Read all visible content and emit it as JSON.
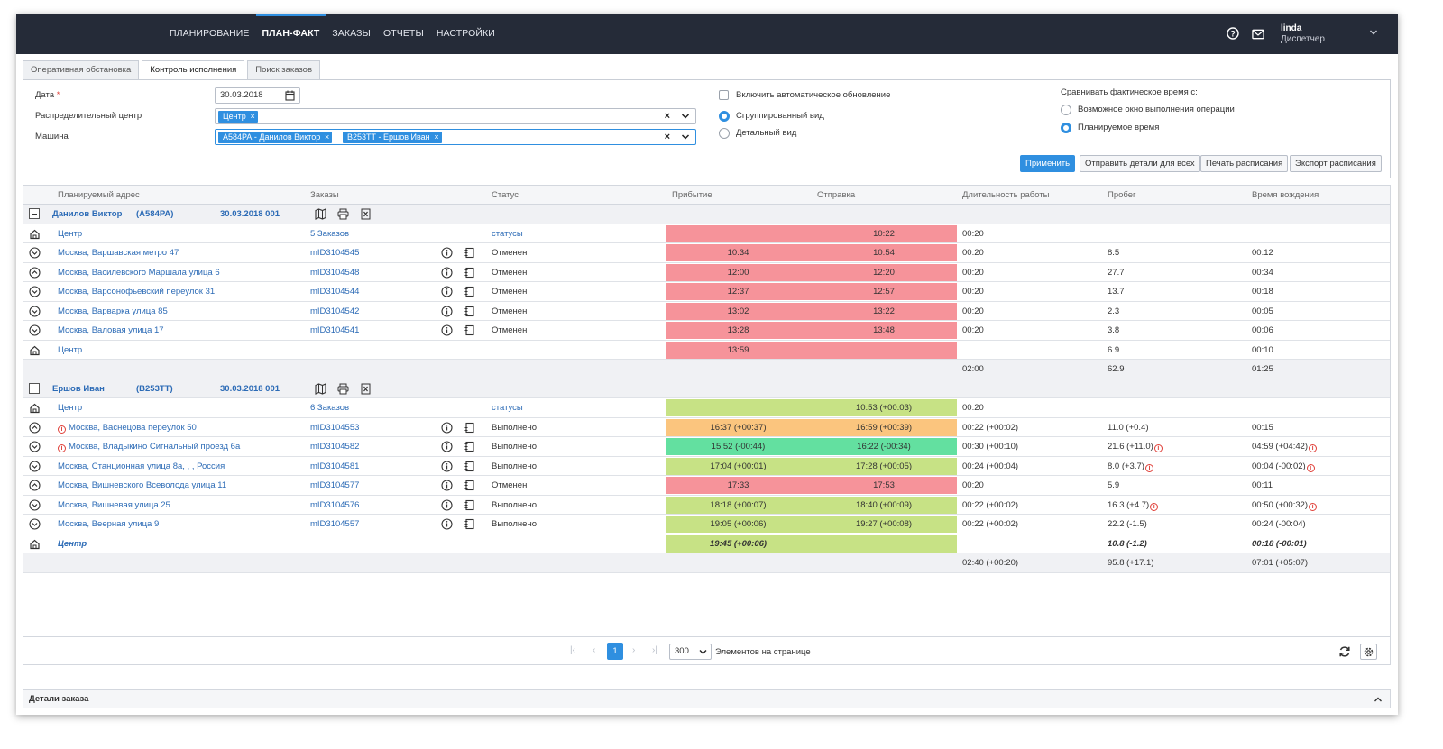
{
  "nav": {
    "menu": [
      "ПЛАНИРОВАНИЕ",
      "ПЛАН-ФАКТ",
      "ЗАКАЗЫ",
      "ОТЧЕТЫ",
      "НАСТРОЙКИ"
    ],
    "active": "ПЛАН-ФАКТ",
    "user_name": "linda",
    "user_role": "Диспетчер"
  },
  "tabs": [
    "Оперативная обстановка",
    "Контроль исполнения",
    "Поиск заказов"
  ],
  "filters": {
    "date_label": "Дата",
    "date_value": "30.03.2018",
    "dc_label": "Распределительный центр",
    "dc_chips": [
      "Центр"
    ],
    "vehicle_label": "Машина",
    "vehicle_chips": [
      "А584РА - Данилов Виктор",
      "В253ТТ - Ершов Иван"
    ],
    "auto_update": "Включить автоматическое обновление",
    "view_grouped": "Сгруппированный вид",
    "view_detailed": "Детальный вид",
    "compare_title": "Сравнивать фактическое время с:",
    "compare_window": "Возможное окно выполнения операции",
    "compare_planned": "Планируемое время",
    "buttons": {
      "apply": "Применить",
      "send": "Отправить детали для всех",
      "print": "Печать расписания",
      "export": "Экспорт расписания"
    }
  },
  "columns": [
    "Планируемый адрес",
    "Заказы",
    "Статус",
    "Прибытие",
    "Отправка",
    "Длительность работы",
    "Пробег",
    "Время вождения"
  ],
  "colors": {
    "red": "#f6939a",
    "green": "#c7e285",
    "orange": "#fbc57e",
    "bright": "#63e0a0",
    "accent": "#2f8fe0"
  },
  "groups": [
    {
      "driver": "Данилов Виктор",
      "plate": "(А584РА)",
      "route": "30.03.2018 001",
      "rows": [
        {
          "icon": "home-icon",
          "addr": "Центр",
          "orders": "5 Заказов",
          "status": "статусы",
          "status_link": true,
          "arr": "",
          "dep": "10:22",
          "color": "red",
          "dur": "00:20",
          "km": "",
          "drive": ""
        },
        {
          "icon": "chevron-down-circle-icon",
          "addr": "Москва, Варшавская метро 47",
          "orders": "mID3104545",
          "status": "Отменен",
          "arr": "10:34",
          "dep": "10:54",
          "color": "red",
          "dur": "00:20",
          "km": "8.5",
          "drive": "00:12"
        },
        {
          "icon": "chevron-up-circle-icon",
          "addr": "Москва, Василевского Маршала улица 6",
          "orders": "mID3104548",
          "status": "Отменен",
          "arr": "12:00",
          "dep": "12:20",
          "color": "red",
          "dur": "00:20",
          "km": "27.7",
          "drive": "00:34"
        },
        {
          "icon": "chevron-down-circle-icon",
          "addr": "Москва, Варсонофьевский переулок 31",
          "orders": "mID3104544",
          "status": "Отменен",
          "arr": "12:37",
          "dep": "12:57",
          "color": "red",
          "dur": "00:20",
          "km": "13.7",
          "drive": "00:18"
        },
        {
          "icon": "chevron-down-circle-icon",
          "addr": "Москва, Варварка улица 85",
          "orders": "mID3104542",
          "status": "Отменен",
          "arr": "13:02",
          "dep": "13:22",
          "color": "red",
          "dur": "00:20",
          "km": "2.3",
          "drive": "00:05"
        },
        {
          "icon": "chevron-down-circle-icon",
          "addr": "Москва, Валовая улица 17",
          "orders": "mID3104541",
          "status": "Отменен",
          "arr": "13:28",
          "dep": "13:48",
          "color": "red",
          "dur": "00:20",
          "km": "3.8",
          "drive": "00:06"
        },
        {
          "icon": "home-icon",
          "addr": "Центр",
          "orders": "",
          "status": "",
          "arr": "13:59",
          "dep": "",
          "color": "red",
          "dur": "",
          "km": "6.9",
          "drive": "00:10"
        }
      ],
      "total": {
        "dur": "02:00",
        "km": "62.9",
        "drive": "01:25"
      }
    },
    {
      "driver": "Ершов Иван",
      "plate": "(В253ТТ)",
      "route": "30.03.2018 001",
      "rows": [
        {
          "icon": "home-icon",
          "addr": "Центр",
          "orders": "6 Заказов",
          "status": "статусы",
          "status_link": true,
          "arr": "",
          "dep": "10:53 (+00:03)",
          "color": "green",
          "dur": "00:20",
          "km": "",
          "drive": ""
        },
        {
          "icon": "chevron-up-circle-icon",
          "addr": "Москва, Васнецова переулок 50",
          "warn_addr": true,
          "orders": "mID3104553",
          "status": "Выполнено",
          "arr": "16:37 (+00:37)",
          "dep": "16:59 (+00:39)",
          "color": "orange",
          "dur": "00:22 (+00:02)",
          "km": "11.0 (+0.4)",
          "drive": "00:15"
        },
        {
          "icon": "chevron-down-circle-icon",
          "addr": "Москва, Владыкино Сигнальный проезд 6а",
          "warn_addr": true,
          "orders": "mID3104582",
          "status": "Выполнено",
          "arr": "15:52 (-00:44)",
          "dep": "16:22 (-00:34)",
          "color": "bright",
          "dur": "00:30 (+00:10)",
          "km": "21.6 (+11.0)",
          "warn_km": true,
          "drive": "04:59 (+04:42)",
          "warn_drive": true
        },
        {
          "icon": "chevron-down-circle-icon",
          "addr": "Москва, Станционная улица 8а, , , Россия",
          "orders": "mID3104581",
          "status": "Выполнено",
          "arr": "17:04 (+00:01)",
          "dep": "17:28 (+00:05)",
          "color": "green",
          "dur": "00:24 (+00:04)",
          "km": "8.0 (+3.7)",
          "warn_km": true,
          "drive": "00:04 (-00:02)",
          "warn_drive": true
        },
        {
          "icon": "chevron-up-circle-icon",
          "addr": "Москва, Вишневского Всеволода улица 11",
          "orders": "mID3104577",
          "status": "Отменен",
          "arr": "17:33",
          "dep": "17:53",
          "color": "red",
          "dur": "00:20",
          "km": "5.9",
          "drive": "00:11"
        },
        {
          "icon": "chevron-down-circle-icon",
          "addr": "Москва, Вишневая улица 25",
          "orders": "mID3104576",
          "status": "Выполнено",
          "arr": "18:18 (+00:07)",
          "dep": "18:40 (+00:09)",
          "color": "green",
          "dur": "00:22 (+00:02)",
          "km": "16.3 (+4.7)",
          "warn_km": true,
          "drive": "00:50 (+00:32)",
          "warn_drive": true
        },
        {
          "icon": "chevron-down-circle-icon",
          "addr": "Москва, Веерная улица 9",
          "orders": "mID3104557",
          "status": "Выполнено",
          "arr": "19:05 (+00:06)",
          "dep": "19:27 (+00:08)",
          "color": "green",
          "dur": "00:22 (+00:02)",
          "km": "22.2 (-1.5)",
          "drive": "00:24 (-00:04)"
        },
        {
          "icon": "home-icon",
          "addr": "Центр",
          "italic": true,
          "orders": "",
          "status": "",
          "arr": "19:45 (+00:06)",
          "dep": "",
          "color": "green",
          "dur": "",
          "km": "10.8 (-1.2)",
          "drive": "00:18 (-00:01)"
        }
      ],
      "total": {
        "dur": "02:40 (+00:20)",
        "km": "95.8 (+17.1)",
        "drive": "07:01 (+05:07)"
      }
    }
  ],
  "pager": {
    "current": "1",
    "page_size": "300",
    "label": "Элементов на странице"
  },
  "details_title": "Детали заказа"
}
